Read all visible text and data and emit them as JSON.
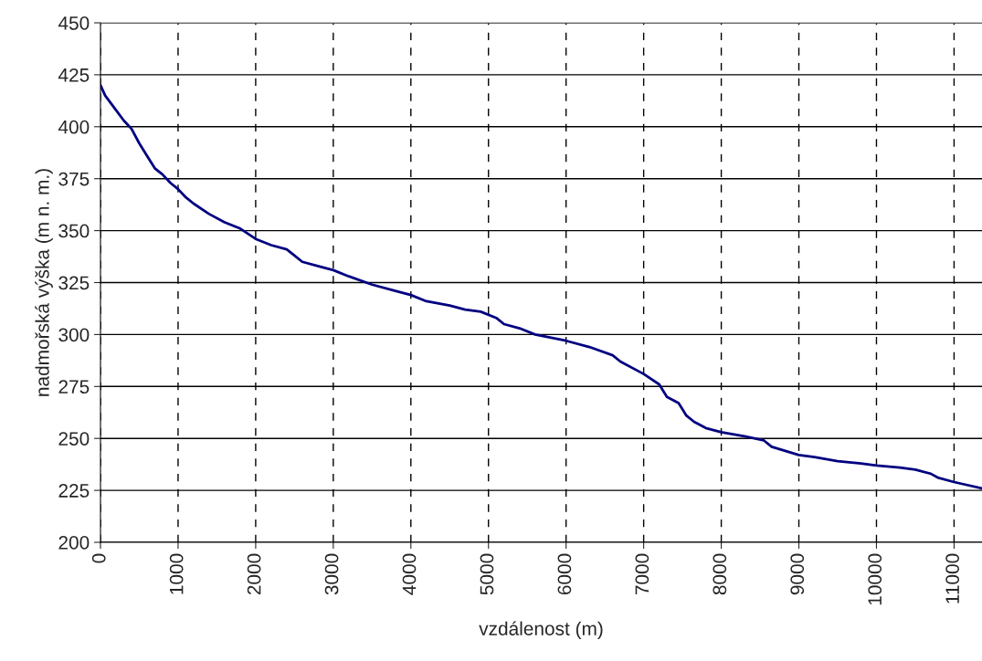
{
  "chart_data": {
    "type": "line",
    "xlabel": "vzdálenost (m)",
    "ylabel": "nadmořská výška (m n. m.)",
    "xlim": [
      0,
      11360
    ],
    "xticks": [
      0,
      1000,
      2000,
      3000,
      4000,
      5000,
      6000,
      7000,
      8000,
      9000,
      10000,
      11000
    ],
    "ylim": [
      200,
      450
    ],
    "yticks": [
      200,
      225,
      250,
      275,
      300,
      325,
      350,
      375,
      400,
      425,
      450
    ],
    "grid": true,
    "marker": "none",
    "line_style": "solid",
    "series": [
      {
        "color": "#000080",
        "x": [
          0,
          60,
          200,
          300,
          400,
          500,
          600,
          700,
          800,
          900,
          1000,
          1100,
          1200,
          1400,
          1600,
          1800,
          2000,
          2200,
          2400,
          2500,
          2600,
          2800,
          3000,
          3200,
          3500,
          3800,
          4000,
          4200,
          4500,
          4700,
          4900,
          5100,
          5200,
          5400,
          5600,
          6000,
          6300,
          6600,
          6700,
          7000,
          7200,
          7300,
          7450,
          7500,
          7550,
          7650,
          7800,
          8000,
          8300,
          8550,
          8650,
          9000,
          9200,
          9500,
          9800,
          10000,
          10300,
          10500,
          10700,
          10800,
          11000,
          11360
        ],
        "values": [
          420,
          415,
          408,
          403,
          399,
          392,
          386,
          380,
          377,
          373,
          370,
          366,
          363,
          358,
          354,
          351,
          346,
          343,
          341,
          338,
          335,
          333,
          331,
          328,
          324,
          321,
          319,
          316,
          314,
          312,
          311,
          308,
          305,
          303,
          300,
          297,
          294,
          290,
          287,
          281,
          276,
          270,
          267,
          264,
          261,
          258,
          255,
          253,
          251,
          249,
          246,
          242,
          241,
          239,
          238,
          237,
          236,
          235,
          233,
          231,
          229,
          226
        ]
      }
    ]
  }
}
